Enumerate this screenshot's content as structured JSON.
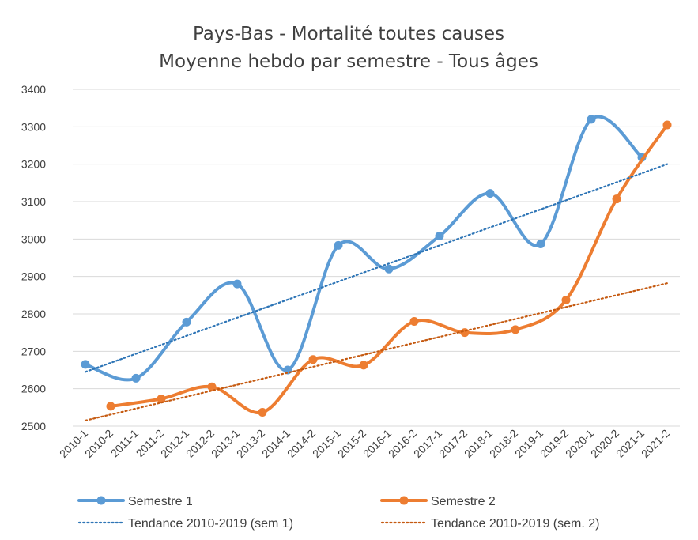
{
  "chart_data": {
    "type": "line",
    "title": [
      "Pays-Bas - Mortalité toutes causes",
      "Moyenne hebdo par semestre - Tous âges"
    ],
    "xlabel": "",
    "ylabel": "",
    "ylim": [
      2500,
      3400
    ],
    "yticks": [
      2500,
      2600,
      2700,
      2800,
      2900,
      3000,
      3100,
      3200,
      3300,
      3400
    ],
    "categories": [
      "2010-1",
      "2010-2",
      "2011-1",
      "2011-2",
      "2012-1",
      "2012-2",
      "2013-1",
      "2013-2",
      "2014-1",
      "2014-2",
      "2015-1",
      "2015-2",
      "2016-1",
      "2016-2",
      "2017-1",
      "2017-2",
      "2018-1",
      "2018-2",
      "2019-1",
      "2019-2",
      "2020-1",
      "2020-2",
      "2021-1",
      "2021-2"
    ],
    "grid": "horizontal",
    "legend_position": "bottom",
    "series": [
      {
        "name": "Semestre 1",
        "color": "#5b9bd5",
        "style": "smooth-line-markers",
        "points": [
          {
            "x": "2010-1",
            "y": 2665
          },
          {
            "x": "2011-1",
            "y": 2628
          },
          {
            "x": "2012-1",
            "y": 2778
          },
          {
            "x": "2013-1",
            "y": 2880
          },
          {
            "x": "2014-1",
            "y": 2650
          },
          {
            "x": "2015-1",
            "y": 2983
          },
          {
            "x": "2016-1",
            "y": 2920
          },
          {
            "x": "2017-1",
            "y": 3008
          },
          {
            "x": "2018-1",
            "y": 3122
          },
          {
            "x": "2019-1",
            "y": 2987
          },
          {
            "x": "2020-1",
            "y": 3320
          },
          {
            "x": "2021-1",
            "y": 3218
          }
        ]
      },
      {
        "name": "Semestre 2",
        "color": "#ed7d31",
        "style": "smooth-line-markers",
        "points": [
          {
            "x": "2010-2",
            "y": 2553
          },
          {
            "x": "2011-2",
            "y": 2573
          },
          {
            "x": "2012-2",
            "y": 2605
          },
          {
            "x": "2013-2",
            "y": 2537
          },
          {
            "x": "2014-2",
            "y": 2678
          },
          {
            "x": "2015-2",
            "y": 2663
          },
          {
            "x": "2016-2",
            "y": 2780
          },
          {
            "x": "2017-2",
            "y": 2750
          },
          {
            "x": "2018-2",
            "y": 2758
          },
          {
            "x": "2019-2",
            "y": 2837
          },
          {
            "x": "2020-2",
            "y": 3107
          },
          {
            "x": "2021-2",
            "y": 3305
          }
        ]
      },
      {
        "name": "Tendance 2010-2019 (sem 1)",
        "color": "#2e75b6",
        "style": "dotted",
        "points": [
          {
            "x": "2010-1",
            "y": 2645
          },
          {
            "x": "2021-2",
            "y": 3200
          }
        ]
      },
      {
        "name": "Tendance 2010-2019 (sem. 2)",
        "color": "#c55a11",
        "style": "dotted",
        "points": [
          {
            "x": "2010-1",
            "y": 2515
          },
          {
            "x": "2021-2",
            "y": 2882
          }
        ]
      }
    ]
  }
}
